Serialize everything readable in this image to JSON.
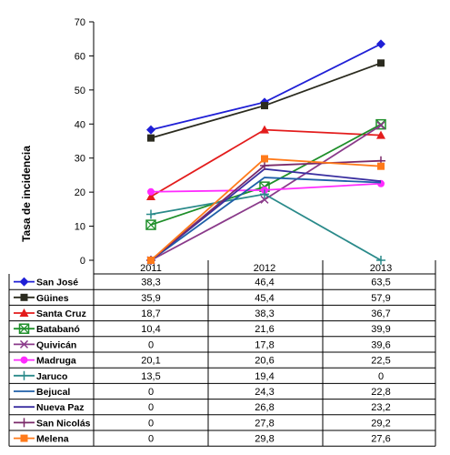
{
  "chart_data": {
    "type": "line",
    "title": "",
    "ylabel": "Tasa de incidencia",
    "xlabel": "",
    "categories": [
      "2011",
      "2012",
      "2013"
    ],
    "ylim": [
      0,
      70
    ],
    "yticks": [
      0,
      10,
      20,
      30,
      40,
      50,
      60,
      70
    ],
    "grid": false,
    "legend": "data-table-below",
    "series": [
      {
        "name": "San José",
        "values": [
          38.3,
          46.4,
          63.5
        ],
        "labels": [
          "38,3",
          "46,4",
          "63,5"
        ],
        "color": "#1f1fd6",
        "marker": "diamond"
      },
      {
        "name": "Güines",
        "values": [
          35.9,
          45.4,
          57.9
        ],
        "labels": [
          "35,9",
          "45,4",
          "57,9"
        ],
        "color": "#2b2b1f",
        "marker": "square"
      },
      {
        "name": "Santa Cruz",
        "values": [
          18.7,
          38.3,
          36.7
        ],
        "labels": [
          "18,7",
          "38,3",
          "36,7"
        ],
        "color": "#e31c1c",
        "marker": "triangle"
      },
      {
        "name": "Batabanó",
        "values": [
          10.4,
          21.6,
          39.9
        ],
        "labels": [
          "10,4",
          "21,6",
          "39,9"
        ],
        "color": "#1f8f2a",
        "marker": "square-x"
      },
      {
        "name": "Quivicán",
        "values": [
          0,
          17.8,
          39.6
        ],
        "labels": [
          "0",
          "17,8",
          "39,6"
        ],
        "color": "#8a3a8a",
        "marker": "x"
      },
      {
        "name": "Madruga",
        "values": [
          20.1,
          20.6,
          22.5
        ],
        "labels": [
          "20,1",
          "20,6",
          "22,5"
        ],
        "color": "#ff2bff",
        "marker": "circle"
      },
      {
        "name": "Jaruco",
        "values": [
          13.5,
          19.4,
          0
        ],
        "labels": [
          "13,5",
          "19,4",
          "0"
        ],
        "color": "#2a8a8a",
        "marker": "plus"
      },
      {
        "name": "Bejucal",
        "values": [
          0,
          24.3,
          22.8
        ],
        "labels": [
          "0",
          "24,3",
          "22,8"
        ],
        "color": "#1f5fa8",
        "marker": "none"
      },
      {
        "name": "Nueva Paz",
        "values": [
          0,
          26.8,
          23.2
        ],
        "labels": [
          "0",
          "26,8",
          "23,2"
        ],
        "color": "#3a2fa0",
        "marker": "none"
      },
      {
        "name": "San Nicolás",
        "values": [
          0,
          27.8,
          29.2
        ],
        "labels": [
          "0",
          "27,8",
          "29,2"
        ],
        "color": "#7a2a6a",
        "marker": "plus"
      },
      {
        "name": "Melena",
        "values": [
          0,
          29.8,
          27.6
        ],
        "labels": [
          "0",
          "29,8",
          "27,6"
        ],
        "color": "#ff7a1a",
        "marker": "square"
      }
    ]
  }
}
